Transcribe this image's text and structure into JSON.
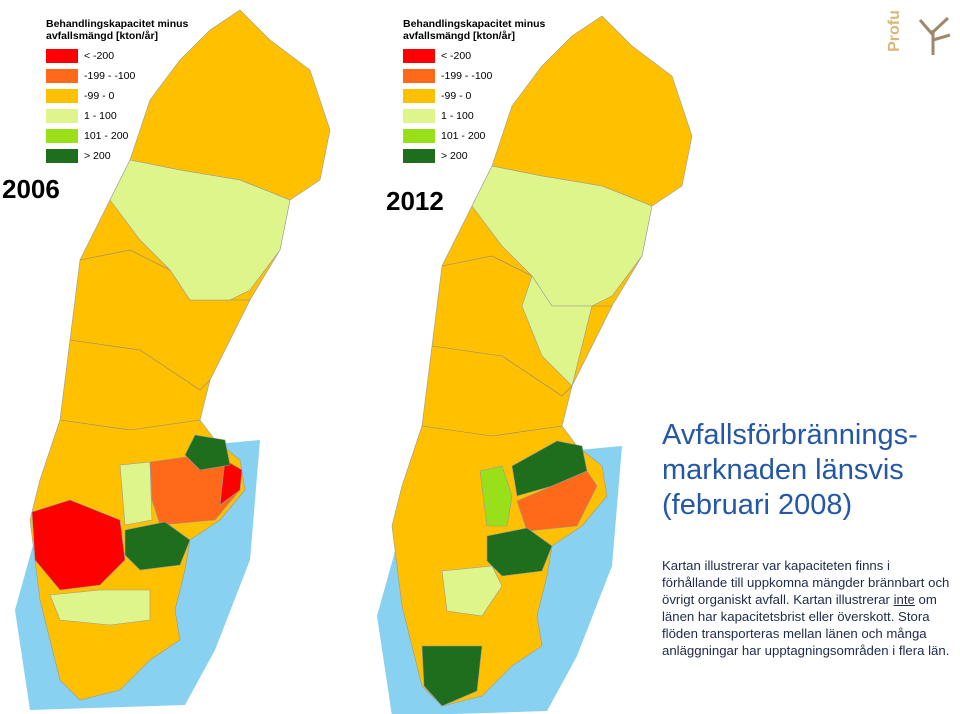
{
  "logo": "Profu",
  "maps": [
    {
      "year": "2006",
      "legend": {
        "title": [
          "Behandlingskapacitet minus",
          "avfallsmängd [kton/år]"
        ],
        "items": [
          {
            "label": "< -200",
            "color": "#ff0000"
          },
          {
            "label": "-199 - -100",
            "color": "#ff6a1a"
          },
          {
            "label": "-99 - 0",
            "color": "#ffc000"
          },
          {
            "label": "1 - 100",
            "color": "#ddf58a"
          },
          {
            "label": "101 - 200",
            "color": "#99e01a"
          },
          {
            "label": "> 200",
            "color": "#1e6e1e"
          }
        ]
      }
    },
    {
      "year": "2012",
      "legend": {
        "title": [
          "Behandlingskapacitet minus",
          "avfallsmängd [kton/år]"
        ],
        "items": [
          {
            "label": "< -200",
            "color": "#ff0000"
          },
          {
            "label": "-199 - -100",
            "color": "#ff6a1a"
          },
          {
            "label": "-99 - 0",
            "color": "#ffc000"
          },
          {
            "label": "1 - 100",
            "color": "#ddf58a"
          },
          {
            "label": "101 - 200",
            "color": "#99e01a"
          },
          {
            "label": "> 200",
            "color": "#1e6e1e"
          }
        ]
      }
    }
  ],
  "title": {
    "lines": [
      "Avfallsförbrännings-",
      "marknaden länsvis",
      "(februari 2008)"
    ]
  },
  "body": {
    "parts": [
      "Kartan illustrerar var kapaciteten finns i förhållande till uppkomna mängder brännbart och övrigt organiskt avfall. Kartan illustrerar ",
      "inte",
      " om länen har kapacitetsbrist eller överskott. Stora flöden transporteras mellan länen och många anläggningar har upptagningsområden i flera län."
    ]
  }
}
